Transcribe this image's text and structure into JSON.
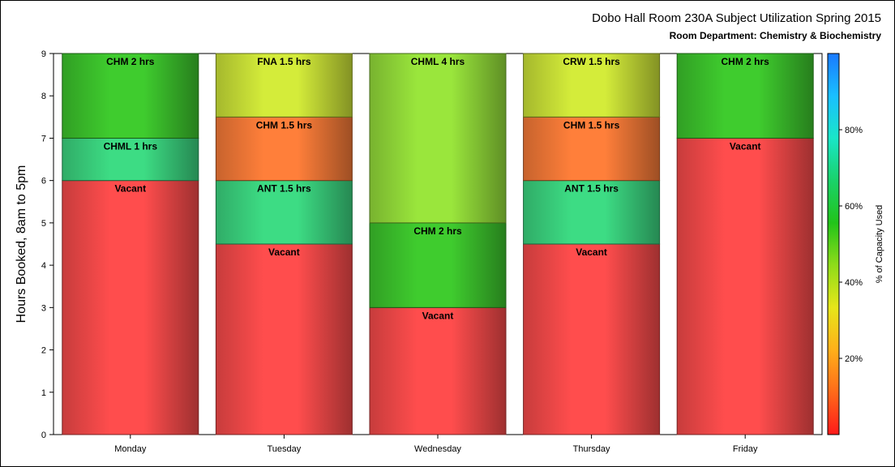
{
  "chart_data": {
    "type": "bar",
    "stacked": true,
    "title": "Dobo Hall Room 230A Subject Utilization Spring 2015",
    "subtitle": "Room Department:  Chemistry & Biochemistry",
    "xlabel": "",
    "ylabel": "Hours Booked, 8am to 5pm",
    "ylim": [
      0,
      9
    ],
    "yticks": [
      0,
      1,
      2,
      3,
      4,
      5,
      6,
      7,
      8,
      9
    ],
    "categories": [
      "Monday",
      "Tuesday",
      "Wednesday",
      "Thursday",
      "Friday"
    ],
    "bars": [
      {
        "category": "Monday",
        "segments": [
          {
            "label": "Vacant",
            "value": 6,
            "color": "#ff4d4d"
          },
          {
            "label": "CHML 1 hrs",
            "value": 1,
            "color": "#3ddc84"
          },
          {
            "label": "CHM 2 hrs",
            "value": 2,
            "color": "#3fcc2e"
          }
        ]
      },
      {
        "category": "Tuesday",
        "segments": [
          {
            "label": "Vacant",
            "value": 4.5,
            "color": "#ff4d4d"
          },
          {
            "label": "ANT 1.5 hrs",
            "value": 1.5,
            "color": "#3ddc84"
          },
          {
            "label": "CHM 1.5 hrs",
            "value": 1.5,
            "color": "#ff7f3a"
          },
          {
            "label": "FNA 1.5 hrs",
            "value": 1.5,
            "color": "#d4ec3a"
          }
        ]
      },
      {
        "category": "Wednesday",
        "segments": [
          {
            "label": "Vacant",
            "value": 3,
            "color": "#ff4d4d"
          },
          {
            "label": "CHM 2 hrs",
            "value": 2,
            "color": "#3fcc2e"
          },
          {
            "label": "CHML 4 hrs",
            "value": 4,
            "color": "#9ae63c"
          }
        ]
      },
      {
        "category": "Thursday",
        "segments": [
          {
            "label": "Vacant",
            "value": 4.5,
            "color": "#ff4d4d"
          },
          {
            "label": "ANT 1.5 hrs",
            "value": 1.5,
            "color": "#3ddc84"
          },
          {
            "label": "CHM 1.5 hrs",
            "value": 1.5,
            "color": "#ff7f3a"
          },
          {
            "label": "CRW 1.5 hrs",
            "value": 1.5,
            "color": "#d4ec3a"
          }
        ]
      },
      {
        "category": "Friday",
        "segments": [
          {
            "label": "Vacant",
            "value": 7,
            "color": "#ff4d4d"
          },
          {
            "label": "CHM 2 hrs",
            "value": 2,
            "color": "#3fcc2e"
          }
        ]
      }
    ],
    "colorbar": {
      "title": "% of Capacity Used",
      "ticks": [
        {
          "value": 20,
          "label": "20%"
        },
        {
          "value": 40,
          "label": "40%"
        },
        {
          "value": 60,
          "label": "60%"
        },
        {
          "value": 80,
          "label": "80%"
        }
      ],
      "range": [
        0,
        100
      ],
      "stops": [
        "#ff1a1a",
        "#ff6a1a",
        "#ffb01a",
        "#e6e61a",
        "#8fdc1a",
        "#22c41a",
        "#1ad26a",
        "#1ae6c8",
        "#1abfff",
        "#1a7aff"
      ]
    },
    "grid": false,
    "legend": "right"
  }
}
